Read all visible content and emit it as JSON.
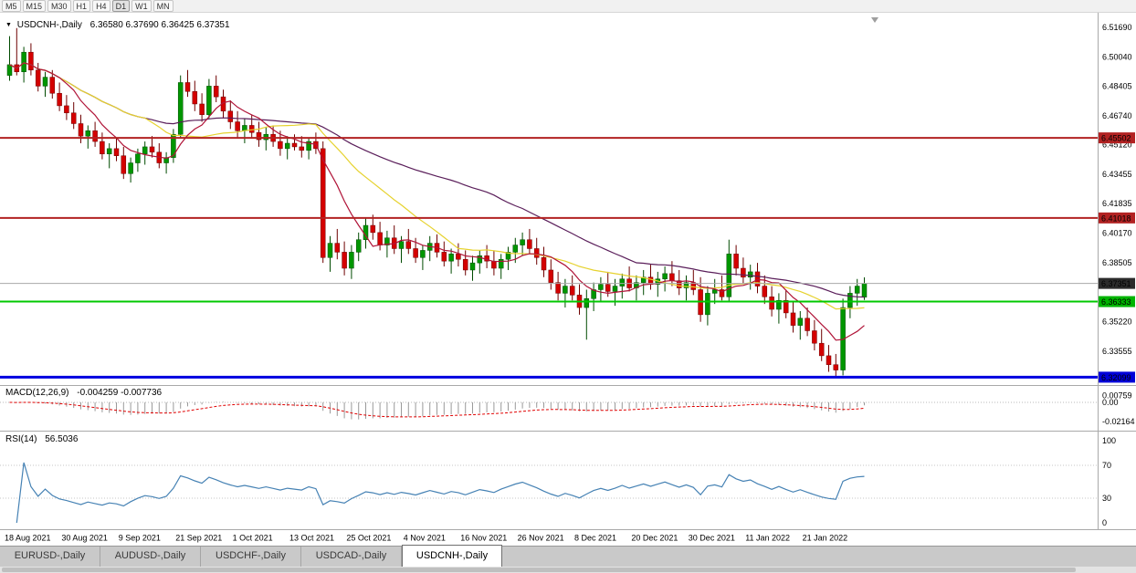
{
  "toolbar": {
    "timeframes": [
      "M5",
      "M15",
      "M30",
      "H1",
      "H4",
      "D1",
      "W1",
      "MN"
    ],
    "active_timeframe": "D1"
  },
  "chart": {
    "title": "USDCNH-,Daily",
    "ohlc_text": "6.36580 6.37690 6.36425 6.37351"
  },
  "indicators": {
    "macd_name": "MACD(12,26,9)",
    "macd_values": "-0.004259 -0.007736",
    "macd_axis": [
      "0.00759",
      "0.00",
      "-0.02164"
    ],
    "rsi_name": "RSI(14)",
    "rsi_value": "56.5036",
    "rsi_axis": [
      "100",
      "70",
      "30",
      "0"
    ]
  },
  "tabs": [
    {
      "label": "EURUSD-,Daily",
      "active": false
    },
    {
      "label": "AUDUSD-,Daily",
      "active": false
    },
    {
      "label": "USDCHF-,Daily",
      "active": false
    },
    {
      "label": "USDCAD-,Daily",
      "active": false
    },
    {
      "label": "USDCNH-,Daily",
      "active": true
    }
  ],
  "chart_data": {
    "type": "candlestick",
    "symbol": "USDCNH-",
    "timeframe": "Daily",
    "current": {
      "open": 6.3658,
      "high": 6.3769,
      "low": 6.36425,
      "close": 6.37351
    },
    "y_axis_ticks": [
      "6.51690",
      "6.50040",
      "6.48405",
      "6.46740",
      "6.45120",
      "6.43455",
      "6.41835",
      "6.40170",
      "6.38505",
      "6.35220",
      "6.33555"
    ],
    "hlines": [
      {
        "price": 6.45502,
        "label": "6.45502",
        "color": "#b22222",
        "width": 2,
        "badge": "#b22222",
        "kind": "resistance-line"
      },
      {
        "price": 6.41018,
        "label": "6.41018",
        "color": "#b22222",
        "width": 2,
        "badge": "#b22222",
        "kind": "resistance-line"
      },
      {
        "price": 6.37351,
        "label": "6.37351",
        "color": "#a8a8a8",
        "width": 1,
        "badge": "#2b2b2b",
        "kind": "current-price-line"
      },
      {
        "price": 6.36333,
        "label": "6.36333",
        "color": "#00c800",
        "width": 2,
        "badge": "#00b400",
        "kind": "support-line"
      },
      {
        "price": 6.32099,
        "label": "6.32099",
        "color": "#0000e0",
        "width": 3,
        "badge": "#0000d8",
        "kind": "support-line"
      }
    ],
    "x_labels": [
      "18 Aug 2021",
      "30 Aug 2021",
      "9 Sep 2021",
      "21 Sep 2021",
      "1 Oct 2021",
      "13 Oct 2021",
      "25 Oct 2021",
      "4 Nov 2021",
      "16 Nov 2021",
      "26 Nov 2021",
      "8 Dec 2021",
      "20 Dec 2021",
      "30 Dec 2021",
      "11 Jan 2022",
      "21 Jan 2022"
    ],
    "label_every_bars": 8,
    "ma_periods": {
      "fast": 8,
      "mid": 20,
      "slow": 45
    },
    "macd_params": [
      12,
      26,
      9
    ],
    "rsi_period": 14,
    "rsi_levels": [
      70,
      30
    ],
    "colors": {
      "up": "#009600",
      "up_border": "#004b00",
      "down": "#d40000",
      "down_border": "#6e0000",
      "ma_fast": "#b01438",
      "ma_mid": "#e6d22e",
      "ma_slow": "#5a1e5a",
      "macd_hist": "#9a9a9a",
      "macd_signal": "#e00000",
      "rsi": "#4682b4"
    },
    "candles": [
      [
        6.49,
        6.512,
        6.487,
        6.496
      ],
      [
        6.496,
        6.5165,
        6.49,
        6.492
      ],
      [
        6.492,
        6.506,
        6.486,
        6.503
      ],
      [
        6.503,
        6.508,
        6.49,
        6.493
      ],
      [
        6.493,
        6.497,
        6.481,
        6.484
      ],
      [
        6.484,
        6.492,
        6.478,
        6.489
      ],
      [
        6.489,
        6.493,
        6.477,
        6.48
      ],
      [
        6.48,
        6.486,
        6.47,
        6.473
      ],
      [
        6.473,
        6.479,
        6.465,
        6.469
      ],
      [
        6.469,
        6.475,
        6.46,
        6.463
      ],
      [
        6.463,
        6.468,
        6.452,
        6.456
      ],
      [
        6.456,
        6.462,
        6.449,
        6.459
      ],
      [
        6.459,
        6.464,
        6.45,
        6.453
      ],
      [
        6.453,
        6.458,
        6.443,
        6.446
      ],
      [
        6.446,
        6.452,
        6.438,
        6.449
      ],
      [
        6.449,
        6.455,
        6.442,
        6.445
      ],
      [
        6.445,
        6.45,
        6.432,
        6.435
      ],
      [
        6.435,
        6.444,
        6.43,
        6.441
      ],
      [
        6.441,
        6.449,
        6.436,
        6.446
      ],
      [
        6.446,
        6.453,
        6.44,
        6.45
      ],
      [
        6.45,
        6.456,
        6.444,
        6.447
      ],
      [
        6.447,
        6.452,
        6.438,
        6.441
      ],
      [
        6.441,
        6.447,
        6.435,
        6.444
      ],
      [
        6.444,
        6.46,
        6.441,
        6.457
      ],
      [
        6.457,
        6.49,
        6.455,
        6.486
      ],
      [
        6.486,
        6.493,
        6.478,
        6.481
      ],
      [
        6.481,
        6.487,
        6.47,
        6.474
      ],
      [
        6.474,
        6.48,
        6.464,
        6.468
      ],
      [
        6.468,
        6.488,
        6.466,
        6.484
      ],
      [
        6.484,
        6.49,
        6.475,
        6.478
      ],
      [
        6.478,
        6.482,
        6.466,
        6.47
      ],
      [
        6.47,
        6.476,
        6.46,
        6.464
      ],
      [
        6.464,
        6.47,
        6.455,
        6.459
      ],
      [
        6.459,
        6.466,
        6.452,
        6.462
      ],
      [
        6.462,
        6.468,
        6.455,
        6.458
      ],
      [
        6.458,
        6.464,
        6.45,
        6.454
      ],
      [
        6.454,
        6.461,
        6.448,
        6.457
      ],
      [
        6.457,
        6.462,
        6.45,
        6.453
      ],
      [
        6.453,
        6.459,
        6.445,
        6.449
      ],
      [
        6.449,
        6.456,
        6.443,
        6.452
      ],
      [
        6.452,
        6.457,
        6.448,
        6.45
      ],
      [
        6.45,
        6.456,
        6.444,
        6.448
      ],
      [
        6.448,
        6.455,
        6.443,
        6.453
      ],
      [
        6.453,
        6.458,
        6.446,
        6.449
      ],
      [
        6.449,
        6.453,
        6.385,
        6.388
      ],
      [
        6.388,
        6.4,
        6.38,
        6.396
      ],
      [
        6.396,
        6.404,
        6.387,
        6.391
      ],
      [
        6.391,
        6.397,
        6.378,
        6.382
      ],
      [
        6.382,
        6.395,
        6.376,
        6.391
      ],
      [
        6.391,
        6.402,
        6.386,
        6.398
      ],
      [
        6.398,
        6.41,
        6.393,
        6.406
      ],
      [
        6.406,
        6.412,
        6.398,
        6.402
      ],
      [
        6.402,
        6.408,
        6.392,
        6.395
      ],
      [
        6.395,
        6.403,
        6.388,
        6.399
      ],
      [
        6.399,
        6.406,
        6.39,
        6.393
      ],
      [
        6.393,
        6.4,
        6.385,
        6.397
      ],
      [
        6.397,
        6.404,
        6.39,
        6.393
      ],
      [
        6.393,
        6.399,
        6.385,
        6.388
      ],
      [
        6.388,
        6.395,
        6.381,
        6.392
      ],
      [
        6.392,
        6.4,
        6.386,
        6.396
      ],
      [
        6.396,
        6.401,
        6.388,
        6.391
      ],
      [
        6.391,
        6.397,
        6.383,
        6.386
      ],
      [
        6.386,
        6.393,
        6.379,
        6.39
      ],
      [
        6.39,
        6.396,
        6.383,
        6.387
      ],
      [
        6.387,
        6.392,
        6.378,
        6.381
      ],
      [
        6.381,
        6.389,
        6.375,
        6.385
      ],
      [
        6.385,
        6.392,
        6.379,
        6.389
      ],
      [
        6.389,
        6.395,
        6.382,
        6.386
      ],
      [
        6.386,
        6.392,
        6.378,
        6.382
      ],
      [
        6.382,
        6.39,
        6.376,
        6.387
      ],
      [
        6.387,
        6.394,
        6.381,
        6.391
      ],
      [
        6.391,
        6.399,
        6.385,
        6.395
      ],
      [
        6.395,
        6.402,
        6.389,
        6.398
      ],
      [
        6.398,
        6.404,
        6.39,
        6.393
      ],
      [
        6.393,
        6.399,
        6.384,
        6.388
      ],
      [
        6.388,
        6.394,
        6.377,
        6.381
      ],
      [
        6.381,
        6.387,
        6.37,
        6.374
      ],
      [
        6.374,
        6.38,
        6.364,
        6.368
      ],
      [
        6.368,
        6.376,
        6.36,
        6.372
      ],
      [
        6.372,
        6.378,
        6.364,
        6.367
      ],
      [
        6.367,
        6.373,
        6.356,
        6.36
      ],
      [
        6.36,
        6.37,
        6.342,
        6.365
      ],
      [
        6.365,
        6.374,
        6.358,
        6.37
      ],
      [
        6.37,
        6.377,
        6.363,
        6.373
      ],
      [
        6.373,
        6.38,
        6.366,
        6.369
      ],
      [
        6.369,
        6.376,
        6.361,
        6.372
      ],
      [
        6.372,
        6.379,
        6.365,
        6.376
      ],
      [
        6.376,
        6.383,
        6.369,
        6.371
      ],
      [
        6.371,
        6.378,
        6.364,
        6.374
      ],
      [
        6.374,
        6.381,
        6.367,
        6.377
      ],
      [
        6.377,
        6.384,
        6.37,
        6.373
      ],
      [
        6.373,
        6.38,
        6.366,
        6.376
      ],
      [
        6.376,
        6.383,
        6.369,
        6.379
      ],
      [
        6.379,
        6.386,
        6.372,
        6.375
      ],
      [
        6.375,
        6.381,
        6.367,
        6.371
      ],
      [
        6.371,
        6.378,
        6.364,
        6.374
      ],
      [
        6.374,
        6.381,
        6.367,
        6.37
      ],
      [
        6.37,
        6.377,
        6.352,
        6.356
      ],
      [
        6.356,
        6.372,
        6.35,
        6.368
      ],
      [
        6.368,
        6.376,
        6.362,
        6.37
      ],
      [
        6.37,
        6.378,
        6.364,
        6.366
      ],
      [
        6.366,
        6.398,
        6.363,
        6.39
      ],
      [
        6.39,
        6.395,
        6.378,
        6.382
      ],
      [
        6.382,
        6.388,
        6.373,
        6.377
      ],
      [
        6.377,
        6.384,
        6.37,
        6.38
      ],
      [
        6.38,
        6.385,
        6.368,
        6.372
      ],
      [
        6.372,
        6.378,
        6.362,
        6.366
      ],
      [
        6.366,
        6.372,
        6.355,
        6.359
      ],
      [
        6.359,
        6.368,
        6.351,
        6.364
      ],
      [
        6.364,
        6.37,
        6.354,
        6.357
      ],
      [
        6.357,
        6.363,
        6.346,
        6.35
      ],
      [
        6.35,
        6.358,
        6.342,
        6.354
      ],
      [
        6.354,
        6.36,
        6.344,
        6.347
      ],
      [
        6.347,
        6.353,
        6.336,
        6.34
      ],
      [
        6.34,
        6.348,
        6.33,
        6.333
      ],
      [
        6.333,
        6.339,
        6.324,
        6.328
      ],
      [
        6.328,
        6.334,
        6.321,
        6.325
      ],
      [
        6.325,
        6.365,
        6.322,
        6.36
      ],
      [
        6.36,
        6.372,
        6.354,
        6.368
      ],
      [
        6.368,
        6.376,
        6.361,
        6.372
      ],
      [
        6.3658,
        6.3769,
        6.36425,
        6.37351
      ]
    ]
  }
}
